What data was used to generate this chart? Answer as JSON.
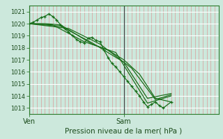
{
  "bg_color": "#cce8dc",
  "plot_bg_color": "#cce8dc",
  "grid_color_major": "#ffffff",
  "grid_color_minor": "#ffaaaa",
  "line_color": "#1a6e1a",
  "marker_color": "#1a6e1a",
  "xlabel_text": "Pression niveau de la mer( hPa )",
  "ven_label": "Ven",
  "sam_label": "Sam",
  "ylim": [
    1012.5,
    1021.5
  ],
  "yticks": [
    1013,
    1014,
    1015,
    1016,
    1017,
    1018,
    1019,
    1020,
    1021
  ],
  "xlim": [
    0,
    48
  ],
  "ven_x": 0,
  "sam_x": 24,
  "x_end": 48,
  "num_minor_x": 48,
  "series": [
    [
      0,
      1020.0
    ],
    [
      1,
      1020.1
    ],
    [
      2,
      1020.3
    ],
    [
      3,
      1020.5
    ],
    [
      4,
      1020.6
    ],
    [
      5,
      1020.8
    ],
    [
      6,
      1020.6
    ],
    [
      7,
      1020.3
    ],
    [
      8,
      1019.9
    ],
    [
      9,
      1019.6
    ],
    [
      10,
      1019.3
    ],
    [
      11,
      1019.0
    ],
    [
      12,
      1018.7
    ],
    [
      13,
      1018.5
    ],
    [
      14,
      1018.4
    ],
    [
      15,
      1018.8
    ],
    [
      16,
      1018.85
    ],
    [
      17,
      1018.6
    ],
    [
      18,
      1018.5
    ],
    [
      19,
      1017.8
    ],
    [
      20,
      1017.2
    ],
    [
      21,
      1016.7
    ],
    [
      22,
      1016.4
    ],
    [
      23,
      1016.0
    ],
    [
      24,
      1015.6
    ],
    [
      25,
      1015.2
    ],
    [
      26,
      1014.8
    ],
    [
      27,
      1014.4
    ],
    [
      28,
      1014.0
    ],
    [
      29,
      1013.5
    ],
    [
      30,
      1013.1
    ],
    [
      31,
      1013.3
    ],
    [
      32,
      1013.5
    ],
    [
      33,
      1013.2
    ],
    [
      34,
      1013.0
    ],
    [
      36,
      1013.5
    ]
  ],
  "series2": [
    [
      0,
      1020.0
    ],
    [
      4,
      1020.0
    ],
    [
      8,
      1019.9
    ],
    [
      12,
      1019.1
    ],
    [
      16,
      1018.3
    ],
    [
      20,
      1017.8
    ],
    [
      24,
      1017.0
    ],
    [
      28,
      1015.8
    ],
    [
      32,
      1013.8
    ],
    [
      36,
      1013.5
    ]
  ],
  "series3": [
    [
      0,
      1020.0
    ],
    [
      6,
      1019.9
    ],
    [
      14,
      1018.5
    ],
    [
      22,
      1017.6
    ],
    [
      30,
      1013.4
    ],
    [
      36,
      1014.0
    ]
  ],
  "series4": [
    [
      0,
      1020.0
    ],
    [
      8,
      1019.8
    ],
    [
      16,
      1018.4
    ],
    [
      24,
      1016.8
    ],
    [
      30,
      1013.8
    ],
    [
      36,
      1014.2
    ]
  ],
  "series5": [
    [
      0,
      1020.0
    ],
    [
      10,
      1019.6
    ],
    [
      18,
      1018.3
    ],
    [
      26,
      1016.3
    ],
    [
      32,
      1013.7
    ],
    [
      36,
      1014.1
    ]
  ]
}
